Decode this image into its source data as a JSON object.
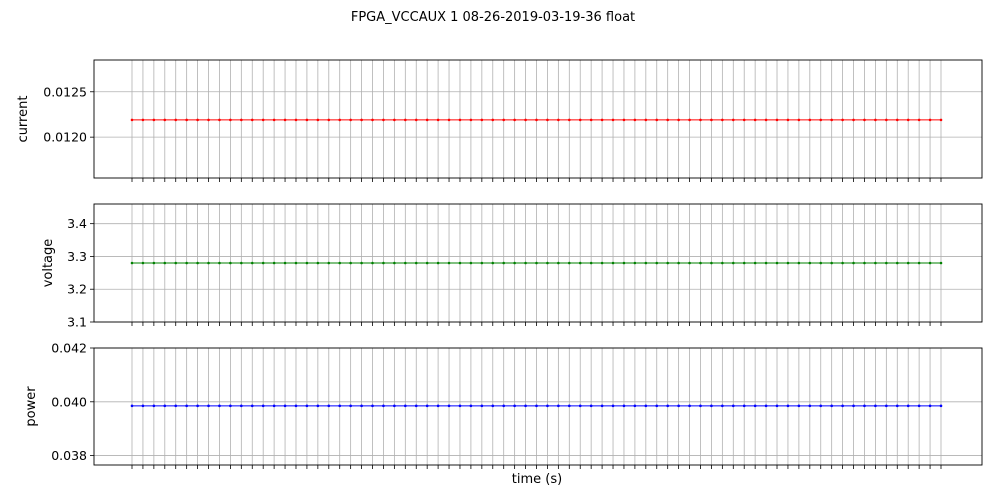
{
  "figure": {
    "title": "FPGA_VCCAUX   1   08-26-2019-03-19-36   float",
    "xlabel": "time (s)"
  },
  "chart_data": [
    {
      "type": "line",
      "ylabel": "current",
      "ylim": [
        0.01155,
        0.01285
      ],
      "yticks": [
        0.012,
        0.0125
      ],
      "ytick_labels": [
        "0.0120",
        "0.0125"
      ],
      "color": "#ff0000",
      "x": [
        0,
        1,
        2,
        3,
        4,
        5,
        6,
        7,
        8,
        9,
        10,
        11,
        12,
        13,
        14,
        15,
        16,
        17,
        18,
        19,
        20,
        21,
        22,
        23,
        24,
        25,
        26,
        27,
        28,
        29,
        30,
        31,
        32,
        33,
        34,
        35,
        36,
        37,
        38,
        39,
        40,
        41,
        42,
        43,
        44,
        45,
        46,
        47,
        48,
        49,
        50,
        51,
        52,
        53,
        54,
        55,
        56,
        57,
        58,
        59,
        60,
        61,
        62,
        63,
        64,
        65,
        66,
        67,
        68,
        69,
        70,
        71,
        72,
        73,
        74
      ],
      "y_constant": 0.01219,
      "grid": true
    },
    {
      "type": "line",
      "ylabel": "voltage",
      "ylim": [
        3.1,
        3.46
      ],
      "yticks": [
        3.1,
        3.2,
        3.3,
        3.4
      ],
      "ytick_labels": [
        "3.1",
        "3.2",
        "3.3",
        "3.4"
      ],
      "color": "#008000",
      "x": [
        0,
        1,
        2,
        3,
        4,
        5,
        6,
        7,
        8,
        9,
        10,
        11,
        12,
        13,
        14,
        15,
        16,
        17,
        18,
        19,
        20,
        21,
        22,
        23,
        24,
        25,
        26,
        27,
        28,
        29,
        30,
        31,
        32,
        33,
        34,
        35,
        36,
        37,
        38,
        39,
        40,
        41,
        42,
        43,
        44,
        45,
        46,
        47,
        48,
        49,
        50,
        51,
        52,
        53,
        54,
        55,
        56,
        57,
        58,
        59,
        60,
        61,
        62,
        63,
        64,
        65,
        66,
        67,
        68,
        69,
        70,
        71,
        72,
        73,
        74
      ],
      "y_constant": 3.28,
      "grid": true
    },
    {
      "type": "line",
      "ylabel": "power",
      "ylim": [
        0.03765,
        0.042
      ],
      "yticks": [
        0.038,
        0.04,
        0.042
      ],
      "ytick_labels": [
        "0.038",
        "0.040",
        "0.042"
      ],
      "color": "#0000ff",
      "x": [
        0,
        1,
        2,
        3,
        4,
        5,
        6,
        7,
        8,
        9,
        10,
        11,
        12,
        13,
        14,
        15,
        16,
        17,
        18,
        19,
        20,
        21,
        22,
        23,
        24,
        25,
        26,
        27,
        28,
        29,
        30,
        31,
        32,
        33,
        34,
        35,
        36,
        37,
        38,
        39,
        40,
        41,
        42,
        43,
        44,
        45,
        46,
        47,
        48,
        49,
        50,
        51,
        52,
        53,
        54,
        55,
        56,
        57,
        58,
        59,
        60,
        61,
        62,
        63,
        64,
        65,
        66,
        67,
        68,
        69,
        70,
        71,
        72,
        73,
        74
      ],
      "y_constant": 0.03985,
      "grid": true
    }
  ]
}
